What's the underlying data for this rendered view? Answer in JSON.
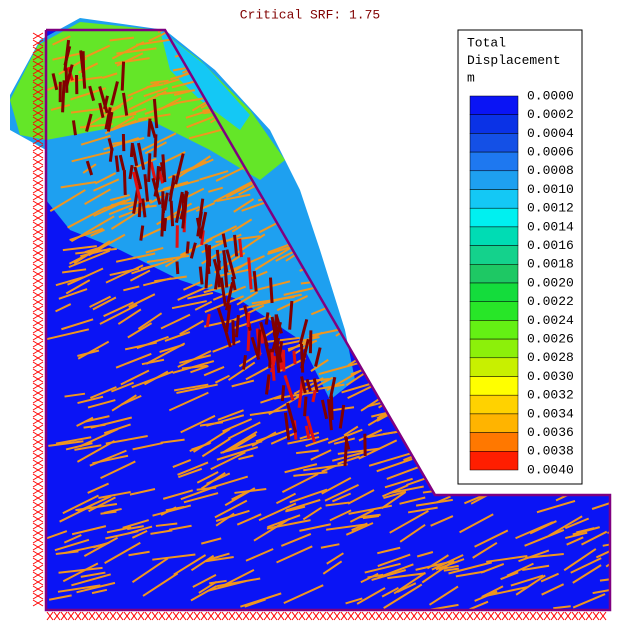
{
  "header": {
    "title": "Critical SRF: 1.75"
  },
  "legend": {
    "title_lines": [
      "Total",
      "Displacement",
      "m"
    ],
    "levels": [
      "0.0000",
      "0.0002",
      "0.0004",
      "0.0006",
      "0.0008",
      "0.0010",
      "0.0012",
      "0.0014",
      "0.0016",
      "0.0018",
      "0.0020",
      "0.0022",
      "0.0024",
      "0.0026",
      "0.0028",
      "0.0030",
      "0.0032",
      "0.0034",
      "0.0036",
      "0.0038",
      "0.0040"
    ],
    "colors": [
      "#0a14f5",
      "#0a32e6",
      "#1450e6",
      "#1e78f0",
      "#1ea0f0",
      "#14c8f5",
      "#00f0f0",
      "#00dcb4",
      "#14d28c",
      "#1ec864",
      "#14dc3c",
      "#28e628",
      "#64f014",
      "#8cf00a",
      "#c8f000",
      "#ffff00",
      "#ffd200",
      "#ffb400",
      "#ff7800",
      "#ff1e00"
    ]
  }
}
